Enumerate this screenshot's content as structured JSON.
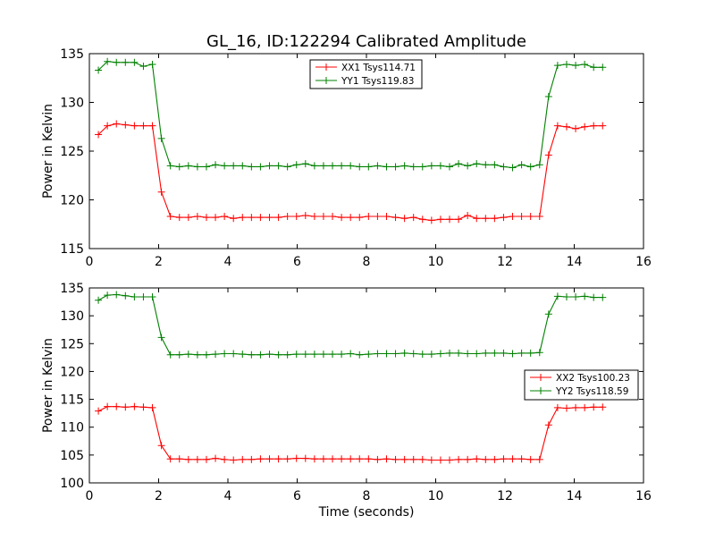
{
  "figure": {
    "title": "GL_16, ID:122294 Calibrated Amplitude"
  },
  "chart_data": [
    {
      "type": "line",
      "title": "GL_16, ID:122294 Calibrated Amplitude",
      "xlabel": "",
      "ylabel": "Power in Kelvin",
      "xlim": [
        0,
        16
      ],
      "ylim": [
        115,
        135
      ],
      "xticks": [
        0,
        2,
        4,
        6,
        8,
        10,
        12,
        14,
        16
      ],
      "yticks": [
        115,
        120,
        125,
        130,
        135
      ],
      "grid": false,
      "legend_position": "top-center",
      "x": [
        0.26,
        0.52,
        0.78,
        1.04,
        1.3,
        1.56,
        1.82,
        2.08,
        2.34,
        2.6,
        2.86,
        3.12,
        3.38,
        3.64,
        3.9,
        4.16,
        4.42,
        4.68,
        4.94,
        5.2,
        5.46,
        5.72,
        5.98,
        6.24,
        6.5,
        6.76,
        7.02,
        7.28,
        7.54,
        7.8,
        8.06,
        8.32,
        8.58,
        8.84,
        9.1,
        9.36,
        9.62,
        9.88,
        10.14,
        10.4,
        10.66,
        10.92,
        11.18,
        11.44,
        11.7,
        11.96,
        12.22,
        12.48,
        12.74,
        13.0,
        13.26,
        13.52,
        13.78,
        14.04,
        14.3,
        14.56,
        14.82
      ],
      "series": [
        {
          "name": "XX1 Tsys114.71",
          "color": "#ff0000",
          "values": [
            126.7,
            127.6,
            127.8,
            127.7,
            127.6,
            127.6,
            127.6,
            120.8,
            118.3,
            118.2,
            118.2,
            118.3,
            118.2,
            118.2,
            118.3,
            118.1,
            118.2,
            118.2,
            118.2,
            118.2,
            118.2,
            118.3,
            118.3,
            118.4,
            118.3,
            118.3,
            118.3,
            118.2,
            118.2,
            118.2,
            118.3,
            118.3,
            118.3,
            118.2,
            118.1,
            118.2,
            118.0,
            117.9,
            118.0,
            118.0,
            118.0,
            118.4,
            118.1,
            118.1,
            118.1,
            118.2,
            118.3,
            118.3,
            118.3,
            118.3,
            124.6,
            127.6,
            127.5,
            127.3,
            127.5,
            127.6,
            127.6
          ]
        },
        {
          "name": "YY1 Tsys119.83",
          "color": "#008000",
          "values": [
            133.3,
            134.2,
            134.1,
            134.1,
            134.1,
            133.7,
            133.9,
            126.3,
            123.5,
            123.4,
            123.5,
            123.4,
            123.4,
            123.6,
            123.5,
            123.5,
            123.5,
            123.4,
            123.4,
            123.5,
            123.5,
            123.4,
            123.6,
            123.7,
            123.5,
            123.5,
            123.5,
            123.5,
            123.5,
            123.4,
            123.4,
            123.5,
            123.4,
            123.4,
            123.5,
            123.4,
            123.4,
            123.5,
            123.5,
            123.4,
            123.7,
            123.5,
            123.7,
            123.6,
            123.6,
            123.4,
            123.3,
            123.6,
            123.4,
            123.6,
            130.6,
            133.8,
            133.9,
            133.8,
            133.9,
            133.6,
            133.6
          ]
        }
      ]
    },
    {
      "type": "line",
      "title": "",
      "xlabel": "Time (seconds)",
      "ylabel": "Power in Kelvin",
      "xlim": [
        0,
        16
      ],
      "ylim": [
        100,
        135
      ],
      "xticks": [
        0,
        2,
        4,
        6,
        8,
        10,
        12,
        14,
        16
      ],
      "yticks": [
        100,
        105,
        110,
        115,
        120,
        125,
        130,
        135
      ],
      "grid": false,
      "legend_position": "center-right",
      "x": [
        0.26,
        0.52,
        0.78,
        1.04,
        1.3,
        1.56,
        1.82,
        2.08,
        2.34,
        2.6,
        2.86,
        3.12,
        3.38,
        3.64,
        3.9,
        4.16,
        4.42,
        4.68,
        4.94,
        5.2,
        5.46,
        5.72,
        5.98,
        6.24,
        6.5,
        6.76,
        7.02,
        7.28,
        7.54,
        7.8,
        8.06,
        8.32,
        8.58,
        8.84,
        9.1,
        9.36,
        9.62,
        9.88,
        10.14,
        10.4,
        10.66,
        10.92,
        11.18,
        11.44,
        11.7,
        11.96,
        12.22,
        12.48,
        12.74,
        13.0,
        13.26,
        13.52,
        13.78,
        14.04,
        14.3,
        14.56,
        14.82
      ],
      "series": [
        {
          "name": "XX2 Tsys100.23",
          "color": "#ff0000",
          "values": [
            112.9,
            113.7,
            113.7,
            113.6,
            113.7,
            113.6,
            113.5,
            106.7,
            104.3,
            104.3,
            104.2,
            104.2,
            104.2,
            104.4,
            104.2,
            104.1,
            104.2,
            104.2,
            104.3,
            104.3,
            104.3,
            104.3,
            104.4,
            104.4,
            104.3,
            104.3,
            104.3,
            104.3,
            104.3,
            104.3,
            104.3,
            104.2,
            104.3,
            104.2,
            104.2,
            104.2,
            104.2,
            104.1,
            104.1,
            104.1,
            104.2,
            104.2,
            104.3,
            104.2,
            104.2,
            104.3,
            104.3,
            104.3,
            104.2,
            104.2,
            110.4,
            113.5,
            113.4,
            113.5,
            113.5,
            113.6,
            113.6
          ]
        },
        {
          "name": "YY2 Tsys118.59",
          "color": "#008000",
          "values": [
            132.8,
            133.7,
            133.8,
            133.6,
            133.4,
            133.4,
            133.4,
            126.1,
            123.0,
            123.0,
            123.1,
            123.0,
            123.0,
            123.1,
            123.2,
            123.2,
            123.1,
            123.0,
            123.0,
            123.1,
            123.0,
            123.0,
            123.1,
            123.1,
            123.1,
            123.1,
            123.1,
            123.1,
            123.2,
            123.0,
            123.1,
            123.2,
            123.2,
            123.2,
            123.3,
            123.2,
            123.1,
            123.1,
            123.2,
            123.3,
            123.3,
            123.2,
            123.2,
            123.3,
            123.3,
            123.3,
            123.2,
            123.3,
            123.3,
            123.4,
            130.3,
            133.5,
            133.4,
            133.4,
            133.5,
            133.3,
            133.3
          ]
        }
      ]
    }
  ]
}
